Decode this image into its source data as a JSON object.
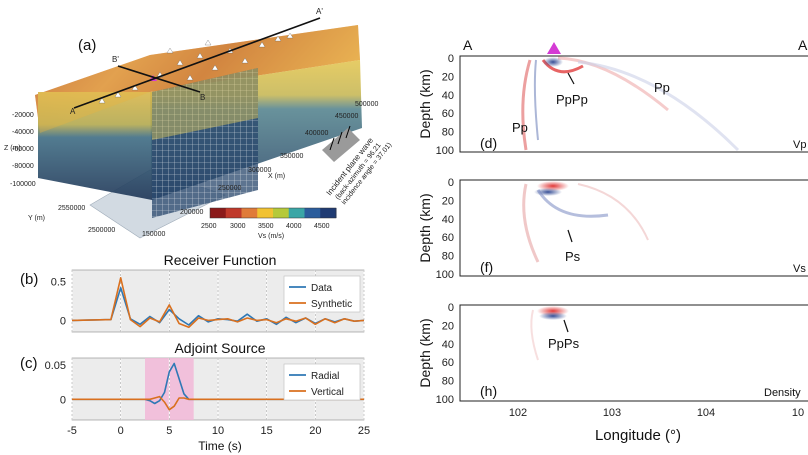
{
  "panel_a": {
    "label": "(a)",
    "profile_labels": {
      "a_start": "A",
      "a_end": "A'",
      "b_start": "B",
      "b_end": "B'"
    },
    "z_axis": {
      "title": "Z (m)",
      "ticks": [
        "-20000",
        "-40000",
        "-60000",
        "-80000",
        "-100000"
      ]
    },
    "y_axis": {
      "title": "Y (m)",
      "ticks": [
        "2550000",
        "2500000"
      ]
    },
    "x_axis": {
      "title": "X (m)",
      "ticks": [
        "500000",
        "450000",
        "400000",
        "350000",
        "300000",
        "250000",
        "200000",
        "150000"
      ]
    },
    "incident_wave": {
      "line1": "Incident plane wave",
      "line2": "(back-azimuth = 96.21",
      "line3": "incidence angle = 37.01)"
    },
    "colorbar": {
      "ticks": [
        "2500",
        "3000",
        "3500",
        "4000",
        "4500"
      ],
      "label": "Vs (m/s)",
      "colors": [
        "#8b1a1a",
        "#c0392b",
        "#e07b39",
        "#f1c232",
        "#b5c93a",
        "#3aa6a6",
        "#2b5d9c",
        "#1f3b73"
      ]
    }
  },
  "panel_b": {
    "label": "(b)",
    "title": "Receiver Function",
    "chart_data": {
      "type": "line",
      "title": "Receiver Function",
      "xlim": [
        -5,
        25
      ],
      "yticks": [
        "0.5",
        "0"
      ],
      "ylim": [
        -0.15,
        0.65
      ],
      "x_grid": [
        -5,
        0,
        5,
        10,
        15,
        20,
        25
      ],
      "series": [
        {
          "name": "Data",
          "color": "#2f78b5",
          "x": [
            -5,
            -1,
            0,
            1,
            2,
            3,
            4,
            5,
            6,
            7,
            8,
            9,
            10,
            11,
            12,
            13,
            14,
            15,
            16,
            17,
            18,
            19,
            20,
            21,
            22,
            23,
            24,
            25
          ],
          "y": [
            0,
            0.01,
            0.42,
            0.02,
            -0.05,
            0.05,
            -0.03,
            0.14,
            0.02,
            -0.06,
            0.06,
            -0.02,
            0.02,
            0.01,
            -0.01,
            0.08,
            -0.01,
            0.02,
            -0.05,
            0.04,
            -0.03,
            0.03,
            -0.04,
            0.02,
            -0.02,
            0.02,
            -0.01,
            0
          ]
        },
        {
          "name": "Synthetic",
          "color": "#d9701f",
          "x": [
            -5,
            -1,
            0,
            1,
            2,
            3,
            4,
            5,
            6,
            7,
            8,
            9,
            10,
            11,
            12,
            13,
            14,
            15,
            16,
            17,
            18,
            19,
            20,
            21,
            22,
            23,
            24,
            25
          ],
          "y": [
            0,
            0.01,
            0.55,
            0.01,
            -0.08,
            0.03,
            -0.02,
            0.2,
            -0.04,
            -0.09,
            0.03,
            0.0,
            0.01,
            0.02,
            -0.02,
            0.03,
            0.0,
            0.01,
            -0.03,
            0.02,
            -0.01,
            0.03,
            -0.05,
            0.02,
            -0.03,
            0.02,
            -0.01,
            0
          ]
        }
      ]
    }
  },
  "panel_c": {
    "label": "(c)",
    "title": "Adjoint Source",
    "xlabel": "Time (s)",
    "chart_data": {
      "type": "line",
      "title": "Adjoint Source",
      "xlabel": "Time (s)",
      "xlim": [
        -5,
        25
      ],
      "xticks": [
        "-5",
        "0",
        "5",
        "10",
        "15",
        "20",
        "25"
      ],
      "yticks": [
        "0.05",
        "0"
      ],
      "ylim": [
        -0.03,
        0.06
      ],
      "window": [
        2.5,
        7.5
      ],
      "series": [
        {
          "name": "Radial",
          "color": "#2f78b5",
          "x": [
            -5,
            2.5,
            3,
            3.5,
            4,
            4.5,
            5,
            5.5,
            6,
            6.5,
            7,
            7.5,
            25
          ],
          "y": [
            0,
            0,
            -0.002,
            -0.006,
            -0.002,
            0.01,
            0.04,
            0.052,
            0.03,
            0.008,
            0.0,
            0,
            0
          ]
        },
        {
          "name": "Vertical",
          "color": "#d9701f",
          "x": [
            -5,
            2.5,
            3,
            3.5,
            4,
            4.5,
            5,
            5.5,
            6,
            6.5,
            7,
            7.5,
            25
          ],
          "y": [
            0,
            0,
            0.0,
            0.002,
            0.004,
            -0.004,
            -0.015,
            -0.01,
            0.002,
            0.002,
            0.0,
            0,
            0
          ]
        }
      ]
    }
  },
  "panel_sections": {
    "top_left": "A",
    "top_right": "A'",
    "ylabel": "Depth (km)",
    "xlabel": "Longitude (°)",
    "xticks": [
      "102",
      "103",
      "104",
      "10"
    ],
    "yticks": [
      "0",
      "20",
      "40",
      "60",
      "80",
      "100"
    ],
    "d": {
      "label": "(d)",
      "tag": "Vp",
      "phases": [
        "PpPp",
        "Pp",
        "Pp"
      ]
    },
    "f": {
      "label": "(f)",
      "tag": "Vs",
      "phases": [
        "Ps"
      ]
    },
    "h": {
      "label": "(h)",
      "tag": "Density",
      "phases": [
        "PpPs"
      ]
    }
  }
}
